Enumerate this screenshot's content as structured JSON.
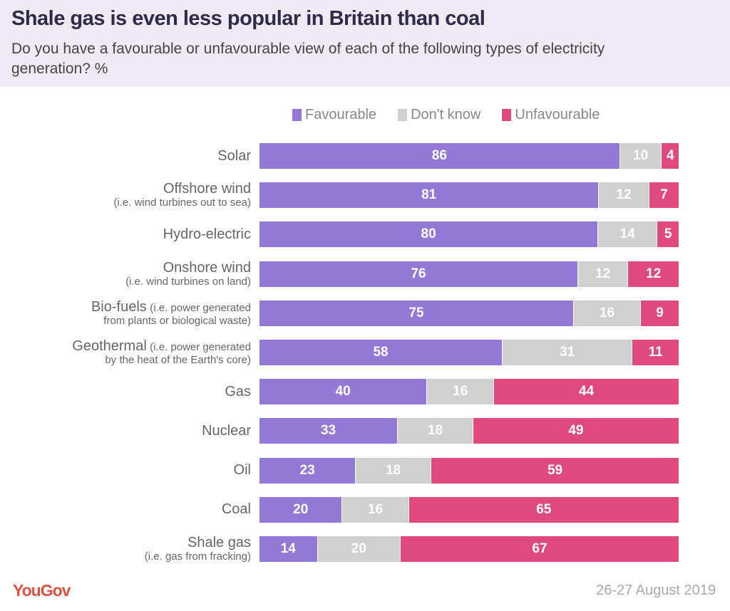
{
  "header": {
    "title": "Shale gas is even less popular in Britain than coal",
    "subtitle": "Do you have a favourable or unfavourable view of each of the following types of electricity generation? %"
  },
  "footer": {
    "logo": "YouGov",
    "date": "26-27 August 2019"
  },
  "colors": {
    "favourable": "#9378d6",
    "dont_know": "#d0d0d0",
    "unfavourable": "#e0497e"
  },
  "chart_data": {
    "type": "bar",
    "orientation": "horizontal-stacked",
    "legend_placement": "top",
    "legend": [
      "Favourable",
      "Don't know",
      "Unfavourable"
    ],
    "categories": [
      {
        "label": "Solar",
        "sub": ""
      },
      {
        "label": "Offshore wind",
        "sub": "(i.e. wind turbines out to sea)"
      },
      {
        "label": "Hydro-electric",
        "sub": ""
      },
      {
        "label": "Onshore wind",
        "sub": "(i.e. wind turbines on land)"
      },
      {
        "label": "Bio-fuels",
        "sub_inline": "(i.e. power generated",
        "sub": "from plants or biological waste)"
      },
      {
        "label": "Geothermal",
        "sub_inline": "(i.e. power generated",
        "sub": "by the heat of the Earth's core)"
      },
      {
        "label": "Gas",
        "sub": ""
      },
      {
        "label": "Nuclear",
        "sub": ""
      },
      {
        "label": "Oil",
        "sub": ""
      },
      {
        "label": "Coal",
        "sub": ""
      },
      {
        "label": "Shale gas",
        "sub": "(i.e. gas from fracking)"
      }
    ],
    "series": [
      {
        "name": "Favourable",
        "values": [
          86,
          81,
          80,
          76,
          75,
          58,
          40,
          33,
          23,
          20,
          14
        ]
      },
      {
        "name": "Don't know",
        "values": [
          10,
          12,
          14,
          12,
          16,
          31,
          16,
          18,
          18,
          16,
          20
        ]
      },
      {
        "name": "Unfavourable",
        "values": [
          4,
          7,
          5,
          12,
          9,
          11,
          44,
          49,
          59,
          65,
          67
        ]
      }
    ]
  }
}
